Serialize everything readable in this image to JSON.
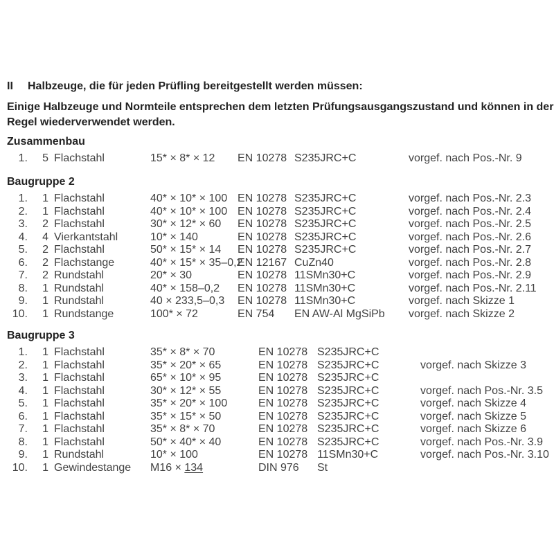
{
  "document": {
    "heading": {
      "numeral": "II",
      "text": "Halbzeuge, die für jeden Prüfling bereitgestellt werden müssen:"
    },
    "intro": {
      "line1": "Einige Halbzeuge und Normteile entsprechen dem letzten Prüfungsausgangszustand und können in der",
      "line2": "Regel wiederverwendet werden."
    },
    "colors": {
      "background": "#ffffff",
      "heading_text": "#232323",
      "body_text": "#414141"
    },
    "sections": [
      {
        "title": "Zusammenbau",
        "rows": [
          {
            "num": "1.",
            "qty": "5",
            "name": "Flachstahl",
            "dims": "15* × 8* × 12",
            "std": "EN 10278",
            "mat": "S235JRC+C",
            "note": "vorgef. nach Pos.-Nr. 9"
          }
        ]
      },
      {
        "title": "Baugruppe 2",
        "rows": [
          {
            "num": "1.",
            "qty": "1",
            "name": "Flachstahl",
            "dims": "40* × 10* × 100",
            "std": "EN 10278",
            "mat": "S235JRC+C",
            "note": "vorgef. nach Pos.-Nr. 2.3"
          },
          {
            "num": "2.",
            "qty": "1",
            "name": "Flachstahl",
            "dims": "40* × 10* × 100",
            "std": "EN 10278",
            "mat": "S235JRC+C",
            "note": "vorgef. nach Pos.-Nr. 2.4"
          },
          {
            "num": "3.",
            "qty": "2",
            "name": "Flachstahl",
            "dims": "30* × 12* × 60",
            "std": "EN 10278",
            "mat": "S235JRC+C",
            "note": "vorgef. nach Pos.-Nr. 2.5"
          },
          {
            "num": "4.",
            "qty": "4",
            "name": "Vierkantstahl",
            "dims": "10* × 140",
            "std": "EN 10278",
            "mat": "S235JRC+C",
            "note": "vorgef. nach Pos.-Nr. 2.6"
          },
          {
            "num": "5.",
            "qty": "2",
            "name": "Flachstahl",
            "dims": "50* × 15* × 14",
            "std": "EN 10278",
            "mat": "S235JRC+C",
            "note": "vorgef. nach Pos.-Nr. 2.7"
          },
          {
            "num": "6.",
            "qty": "2",
            "name": "Flachstange",
            "dims": "40* × 15* × 35–0,2",
            "std": "EN 12167",
            "mat": "CuZn40",
            "note": "vorgef. nach Pos.-Nr. 2.8"
          },
          {
            "num": "7.",
            "qty": "2",
            "name": "Rundstahl",
            "dims": "20* × 30",
            "std": "EN 10278",
            "mat": "11SMn30+C",
            "note": "vorgef. nach Pos.-Nr. 2.9"
          },
          {
            "num": "8.",
            "qty": "1",
            "name": "Rundstahl",
            "dims": "40* × 158–0,2",
            "std": "EN 10278",
            "mat": "11SMn30+C",
            "note": "vorgef. nach Pos.-Nr. 2.11"
          },
          {
            "num": "9.",
            "qty": "1",
            "name": "Rundstahl",
            "dims": "40 × 233,5–0,3",
            "std": "EN 10278",
            "mat": "11SMn30+C",
            "note": "vorgef. nach Skizze 1"
          },
          {
            "num": "10.",
            "qty": "1",
            "name": "Rundstange",
            "dims": "100* × 72",
            "std": "EN 754",
            "mat": "EN AW-Al MgSiPb",
            "note": "vorgef. nach Skizze 2"
          }
        ]
      },
      {
        "title": "Baugruppe 3",
        "rows": [
          {
            "num": "1.",
            "qty": "1",
            "name": "Flachstahl",
            "dims": "35* × 8* × 70",
            "std": "EN 10278",
            "mat": "S235JRC+C",
            "note": ""
          },
          {
            "num": "2.",
            "qty": "1",
            "name": "Flachstahl",
            "dims": "35* × 20* × 65",
            "std": "EN 10278",
            "mat": "S235JRC+C",
            "note": "vorgef. nach Skizze 3"
          },
          {
            "num": "3.",
            "qty": "1",
            "name": "Flachstahl",
            "dims": "65* × 10* × 95",
            "std": "EN 10278",
            "mat": "S235JRC+C",
            "note": ""
          },
          {
            "num": "4.",
            "qty": "1",
            "name": "Flachstahl",
            "dims": "30* × 12* × 55",
            "std": "EN 10278",
            "mat": "S235JRC+C",
            "note": "vorgef. nach Pos.-Nr. 3.5"
          },
          {
            "num": "5.",
            "qty": "1",
            "name": "Flachstahl",
            "dims": "35* × 20* × 100",
            "std": "EN 10278",
            "mat": "S235JRC+C",
            "note": "vorgef. nach Skizze 4"
          },
          {
            "num": "6.",
            "qty": "1",
            "name": "Flachstahl",
            "dims": "35* × 15* × 50",
            "std": "EN 10278",
            "mat": "S235JRC+C",
            "note": "vorgef. nach Skizze 5"
          },
          {
            "num": "7.",
            "qty": "1",
            "name": "Flachstahl",
            "dims": "35* × 8* × 70",
            "std": "EN 10278",
            "mat": "S235JRC+C",
            "note": "vorgef. nach Skizze 6"
          },
          {
            "num": "8.",
            "qty": "1",
            "name": "Flachstahl",
            "dims": "50* × 40* × 40",
            "std": "EN 10278",
            "mat": "S235JRC+C",
            "note": "vorgef. nach Pos.-Nr. 3.9"
          },
          {
            "num": "9.",
            "qty": "1",
            "name": "Rundstahl",
            "dims": "10* × 100",
            "std": "EN 10278",
            "mat": "11SMn30+C",
            "note": "vorgef. nach Pos.-Nr. 3.10"
          },
          {
            "num": "10.",
            "qty": "1",
            "name": "Gewindestange",
            "dims": "M16 × ",
            "dims_underlined": "134",
            "std": "DIN 976",
            "mat": "St",
            "note": ""
          }
        ]
      }
    ]
  }
}
